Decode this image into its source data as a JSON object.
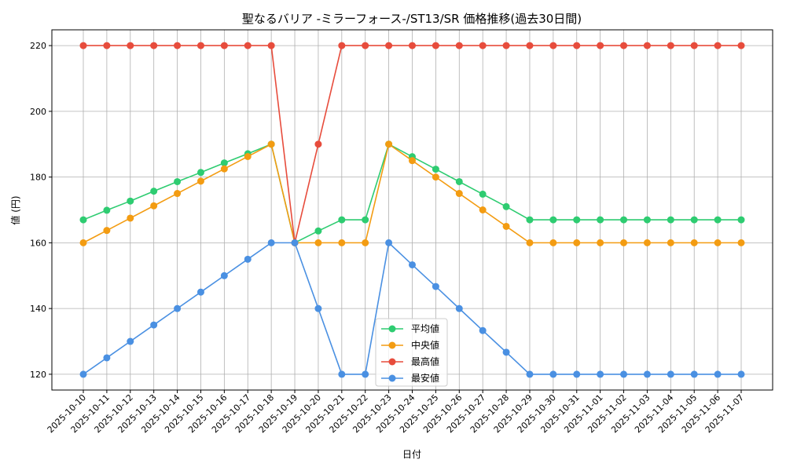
{
  "chart_data": {
    "type": "line",
    "title": "聖なるバリア -ミラーフォース-/ST13/SR 価格推移(過去30日間)",
    "xlabel": "日付",
    "ylabel": "値 (円)",
    "ylim": [
      115.2,
      224.8
    ],
    "yticks": [
      120,
      140,
      160,
      180,
      200,
      220
    ],
    "grid": true,
    "legend_placement": "bottom-center",
    "x": [
      "2025-10-10",
      "2025-10-11",
      "2025-10-12",
      "2025-10-13",
      "2025-10-14",
      "2025-10-15",
      "2025-10-16",
      "2025-10-17",
      "2025-10-18",
      "2025-10-19",
      "2025-10-20",
      "2025-10-21",
      "2025-10-22",
      "2025-10-23",
      "2025-10-24",
      "2025-10-25",
      "2025-10-26",
      "2025-10-27",
      "2025-10-28",
      "2025-10-29",
      "2025-10-30",
      "2025-10-31",
      "2025-11-01",
      "2025-11-02",
      "2025-11-03",
      "2025-11-04",
      "2025-11-05",
      "2025-11-06",
      "2025-11-07"
    ],
    "series": [
      {
        "name": "平均値",
        "color": "#2ecc71",
        "values": [
          167,
          169.9,
          172.7,
          175.7,
          178.6,
          181.4,
          184.3,
          187.1,
          190,
          160,
          163.6,
          167,
          167,
          190,
          186.2,
          182.4,
          178.6,
          174.8,
          171,
          167,
          167,
          167,
          167,
          167,
          167,
          167,
          167,
          167,
          167
        ]
      },
      {
        "name": "中央値",
        "color": "#f39c12",
        "values": [
          160,
          163.75,
          167.5,
          171.25,
          175,
          178.75,
          182.5,
          186.25,
          190,
          160,
          160,
          160,
          160,
          190,
          185,
          180,
          175,
          170,
          165,
          160,
          160,
          160,
          160,
          160,
          160,
          160,
          160,
          160,
          160
        ]
      },
      {
        "name": "最高値",
        "color": "#e74c3c",
        "values": [
          220,
          220,
          220,
          220,
          220,
          220,
          220,
          220,
          220,
          160,
          190,
          220,
          220,
          220,
          220,
          220,
          220,
          220,
          220,
          220,
          220,
          220,
          220,
          220,
          220,
          220,
          220,
          220,
          220
        ]
      },
      {
        "name": "最安値",
        "color": "#4a90e2",
        "values": [
          120,
          125,
          130,
          135,
          140,
          145,
          150,
          155,
          160,
          160,
          140,
          120,
          120,
          160,
          153.3,
          146.7,
          140,
          133.3,
          126.7,
          120,
          120,
          120,
          120,
          120,
          120,
          120,
          120,
          120,
          120
        ]
      }
    ]
  }
}
